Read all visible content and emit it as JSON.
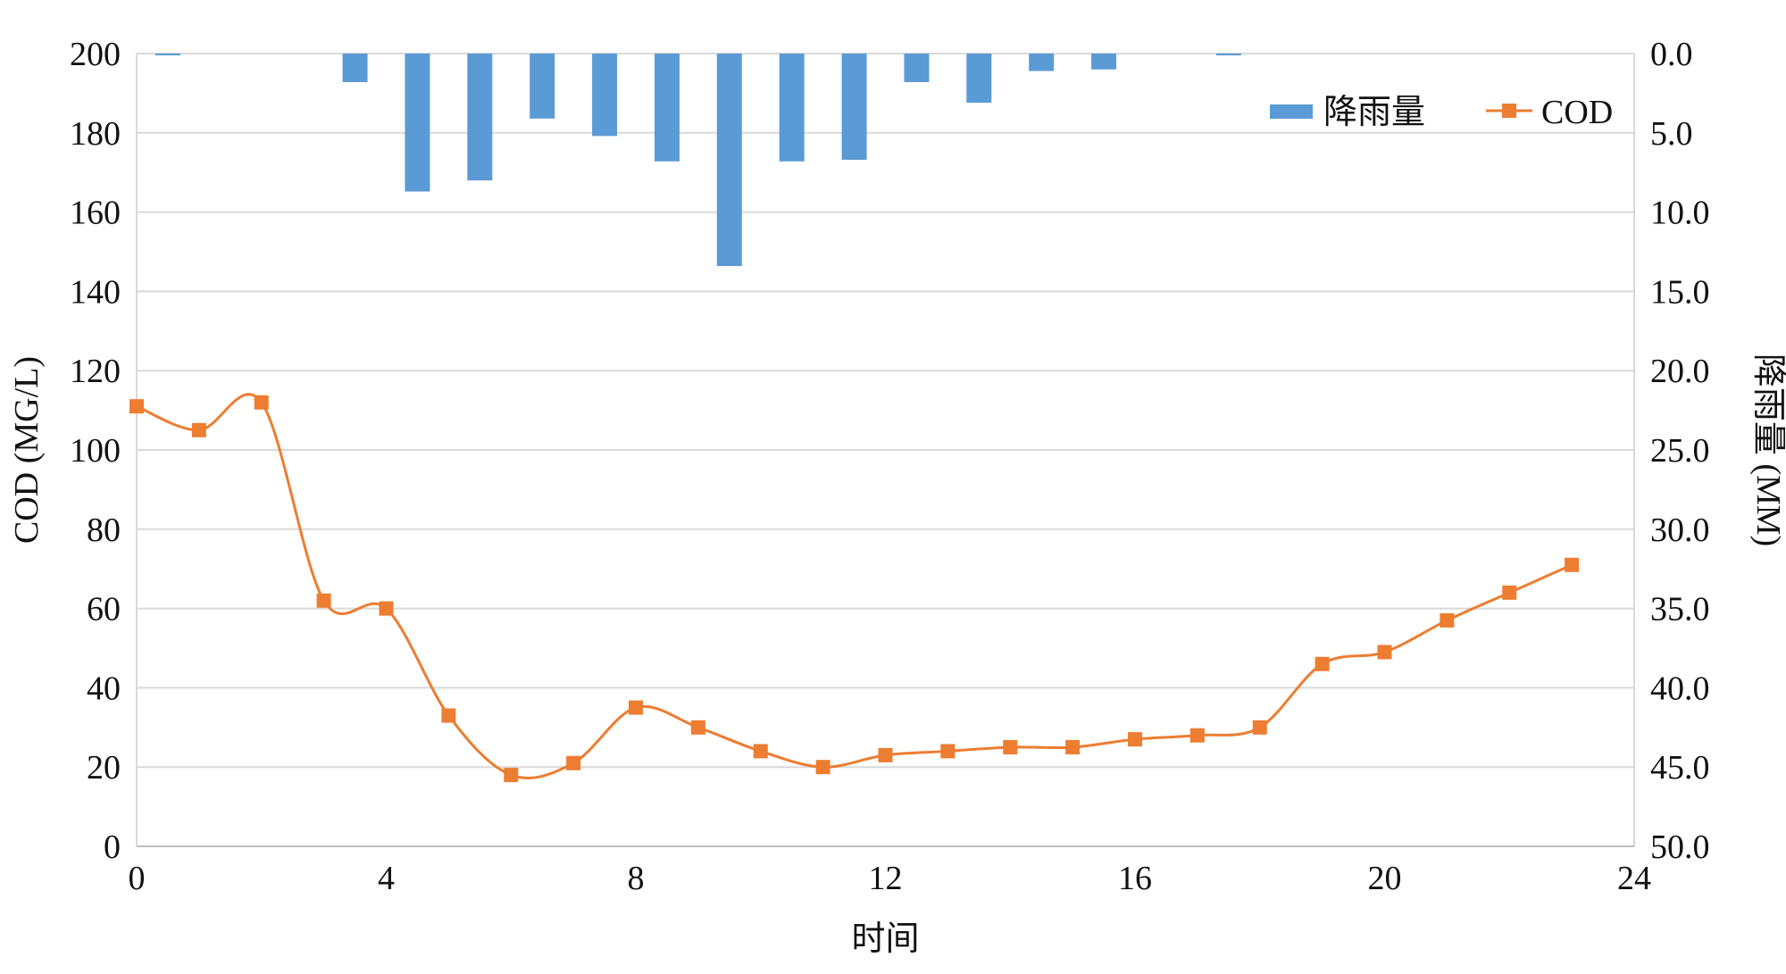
{
  "chart_data": {
    "type": "bar+line",
    "x_label": "时间",
    "y_left_label": "COD (MG/L)",
    "y_right_label": "降雨量 (MM)",
    "x_ticks": [
      "0",
      "4",
      "8",
      "12",
      "16",
      "20",
      "24"
    ],
    "y_left_ticks": [
      "0",
      "20",
      "40",
      "60",
      "80",
      "100",
      "120",
      "140",
      "160",
      "180",
      "200"
    ],
    "y_right_ticks": [
      "0.0",
      "5.0",
      "10.0",
      "15.0",
      "20.0",
      "25.0",
      "30.0",
      "35.0",
      "40.0",
      "45.0",
      "50.0"
    ],
    "xlim": [
      0,
      24
    ],
    "y_left_lim": [
      0,
      200
    ],
    "y_right_lim": [
      0,
      50
    ],
    "y_right_inverted": true,
    "grid": "horizontal",
    "legend_position": "top-right",
    "series": [
      {
        "name": "降雨量",
        "type": "bar",
        "axis": "right",
        "color": "#5B9BD5",
        "x": [
          0.5,
          3.5,
          4.5,
          5.5,
          6.5,
          7.5,
          8.5,
          9.5,
          10.5,
          11.5,
          12.5,
          13.5,
          14.5,
          15.5,
          17.5
        ],
        "values": [
          0.1,
          1.8,
          8.7,
          8.0,
          4.1,
          5.2,
          6.8,
          13.4,
          6.8,
          6.7,
          1.8,
          3.1,
          1.1,
          1.0,
          0.1
        ]
      },
      {
        "name": "COD",
        "type": "line",
        "axis": "left",
        "color": "#ED7D31",
        "marker": "square",
        "smooth": true,
        "x": [
          0,
          1,
          2,
          3,
          4,
          5,
          6,
          7,
          8,
          9,
          10,
          11,
          12,
          13,
          14,
          15,
          16,
          17,
          18,
          19,
          20,
          21,
          22,
          23
        ],
        "values": [
          111,
          105,
          112,
          62,
          60,
          33,
          18,
          21,
          35,
          30,
          24,
          20,
          23,
          24,
          25,
          25,
          27,
          28,
          30,
          46,
          49,
          57,
          64,
          71
        ]
      }
    ]
  }
}
